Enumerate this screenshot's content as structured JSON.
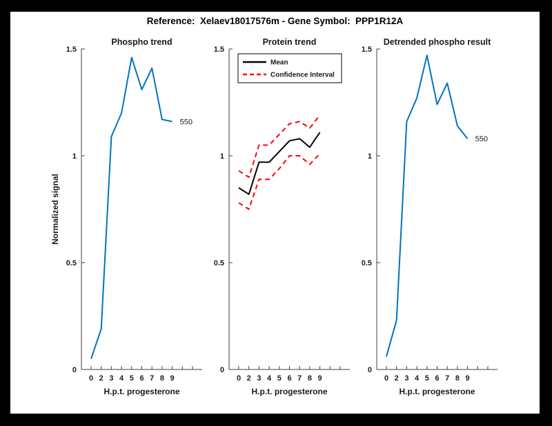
{
  "figure": {
    "title": "Reference:  Xelaev18017576m - Gene Symbol:  PPP1R12A",
    "frame_color": "#000000",
    "canvas_color": "#ffffff",
    "text_color": "#1a1a1a",
    "axis_color": "#3f3f3f"
  },
  "chart_data": [
    {
      "type": "line",
      "title": "Phospho trend",
      "xlabel": "H.p.t. progesterone",
      "ylabel": "Normalized signal",
      "x_tick_labels": [
        "0",
        "2",
        "3",
        "4",
        "5",
        "6",
        "7",
        "8",
        "9"
      ],
      "y_ticks": [
        "0",
        "0.5",
        "1",
        "1.5"
      ],
      "y_tick_values": [
        0,
        0.5,
        1,
        1.5
      ],
      "ylim": [
        0,
        1.5
      ],
      "grid": false,
      "legend": null,
      "end_label": "550",
      "series": [
        {
          "name": "550",
          "color": "#0072BD",
          "style": "solid",
          "values": [
            0.05,
            0.19,
            1.09,
            1.2,
            1.46,
            1.31,
            1.41,
            1.17,
            1.16
          ]
        }
      ]
    },
    {
      "type": "line",
      "title": "Protein trend",
      "xlabel": "H.p.t. progesterone",
      "ylabel": "",
      "x_tick_labels": [
        "0",
        "2",
        "3",
        "4",
        "5",
        "6",
        "7",
        "8",
        "9"
      ],
      "y_ticks": [
        "0",
        "0.5",
        "1",
        "1.5"
      ],
      "y_tick_values": [
        0,
        0.5,
        1,
        1.5
      ],
      "ylim": [
        0,
        1.5
      ],
      "grid": false,
      "legend": {
        "position": "top-left",
        "entries": [
          {
            "label": "Mean",
            "color": "#000000",
            "style": "solid"
          },
          {
            "label": "Confidence Interval",
            "color": "#ff0000",
            "style": "dashed"
          }
        ]
      },
      "end_label": null,
      "series": [
        {
          "name": "Upper confidence interval",
          "color": "#ff0000",
          "style": "dashed",
          "values": [
            0.93,
            0.9,
            1.05,
            1.05,
            1.1,
            1.15,
            1.16,
            1.13,
            1.19
          ]
        },
        {
          "name": "Lower confidence interval",
          "color": "#ff0000",
          "style": "dashed",
          "values": [
            0.78,
            0.75,
            0.89,
            0.89,
            0.94,
            1.0,
            1.0,
            0.96,
            1.01
          ]
        },
        {
          "name": "Mean",
          "color": "#000000",
          "style": "solid",
          "values": [
            0.85,
            0.82,
            0.97,
            0.97,
            1.02,
            1.07,
            1.08,
            1.04,
            1.11
          ]
        }
      ]
    },
    {
      "type": "line",
      "title": "Detrended phospho result",
      "xlabel": "H.p.t. progesterone",
      "ylabel": "",
      "x_tick_labels": [
        "0",
        "2",
        "3",
        "4",
        "5",
        "6",
        "7",
        "8",
        "9"
      ],
      "y_ticks": [
        "0",
        "0.5",
        "1",
        "1.5"
      ],
      "y_tick_values": [
        0,
        0.5,
        1,
        1.5
      ],
      "ylim": [
        0,
        1.5
      ],
      "grid": false,
      "legend": null,
      "end_label": "550",
      "series": [
        {
          "name": "550",
          "color": "#0072BD",
          "style": "solid",
          "values": [
            0.06,
            0.23,
            1.16,
            1.27,
            1.47,
            1.24,
            1.34,
            1.14,
            1.08
          ]
        }
      ]
    }
  ]
}
